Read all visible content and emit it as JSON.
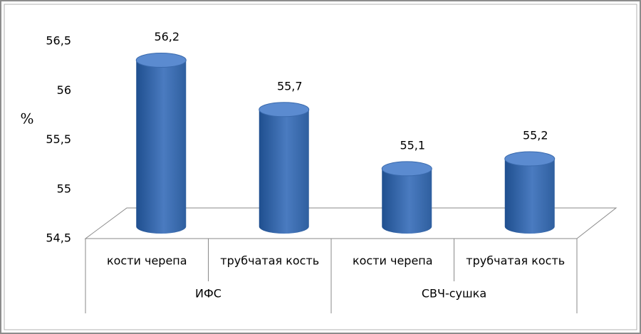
{
  "chart_data": {
    "type": "bar",
    "y_label": "%",
    "categories": [
      "кости черепа",
      "трубчатая кость",
      "кости черепа",
      "трубчатая кость"
    ],
    "group_labels": [
      "ИФС",
      "СВЧ-сушка"
    ],
    "values": [
      56.2,
      55.7,
      55.1,
      55.2
    ],
    "value_labels": [
      "56,2",
      "55,7",
      "55,1",
      "55,2"
    ],
    "color": "#4a7bc0",
    "ylim": [
      54.5,
      56.5
    ],
    "yticks": [
      {
        "value": 54.5,
        "label": "54,5"
      },
      55,
      {
        "value": 55.5,
        "label": "55,5"
      },
      56,
      {
        "value": 56.5,
        "label": "56,5"
      }
    ],
    "grid": false
  }
}
